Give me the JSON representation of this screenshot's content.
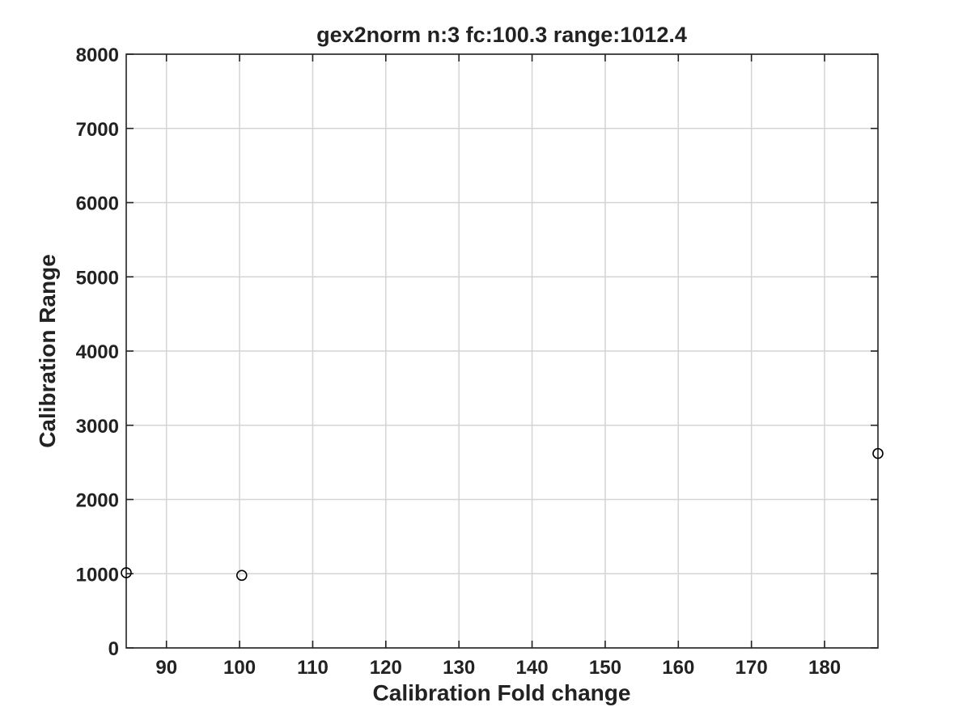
{
  "chart_data": {
    "type": "scatter",
    "title": "gex2norm n:3 fc:100.3 range:1012.4",
    "xlabel": "Calibration Fold change",
    "ylabel": "Calibration Range",
    "xlim": [
      84.5,
      187.3
    ],
    "ylim": [
      0,
      8000
    ],
    "xticks": [
      90,
      100,
      110,
      120,
      130,
      140,
      150,
      160,
      170,
      180
    ],
    "yticks": [
      0,
      1000,
      2000,
      3000,
      4000,
      5000,
      6000,
      7000,
      8000
    ],
    "grid": true,
    "marker": "open-circle",
    "marker_color": "#000000",
    "series": [
      {
        "x": [
          84.5,
          100.3,
          187.3
        ],
        "y": [
          1012.4,
          978,
          2620
        ]
      }
    ]
  }
}
